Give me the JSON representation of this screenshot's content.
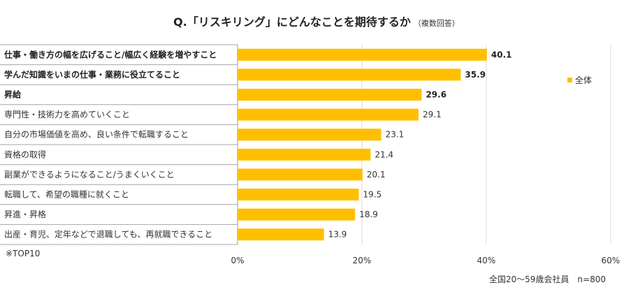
{
  "header": {
    "title": "Q.「リスキリング」にどんなことを期待するか",
    "subtitle": "（複数回答）"
  },
  "legend": {
    "label": "全体"
  },
  "note": "※TOP10",
  "footer": "全国20～59歳会社員　n=800",
  "colors": {
    "bar": "#FFBF00",
    "grid": "#d9d9d9",
    "row_line": "#a6a6a6"
  },
  "chart_data": {
    "type": "bar",
    "orientation": "horizontal",
    "title": "Q.「リスキリング」にどんなことを期待するか",
    "subtitle": "（複数回答）",
    "categories": [
      "仕事・働き方の幅を広げること/幅広く経験を増やすこと",
      "学んだ知識をいまの仕事・業務に役立てること",
      "昇給",
      "専門性・技術力を高めていくこと",
      "自分の市場価値を高め、良い条件で転職すること",
      "資格の取得",
      "副業ができるようになること/うまくいくこと",
      "転職して、希望の職種に就くこと",
      "昇進・昇格",
      "出産・育児、定年などで退職しても、再就職できること"
    ],
    "bold_top": 3,
    "series": [
      {
        "name": "全体",
        "values": [
          40.1,
          35.9,
          29.6,
          29.1,
          23.1,
          21.4,
          20.1,
          19.5,
          18.9,
          13.9
        ]
      }
    ],
    "value_labels": [
      "40.1",
      "35.9",
      "29.6",
      "29.1",
      "23.1",
      "21.4",
      "20.1",
      "19.5",
      "18.9",
      "13.9"
    ],
    "xlim": [
      0,
      60
    ],
    "xticks": [
      0,
      20,
      40,
      60
    ],
    "xtick_labels": [
      "0%",
      "20%",
      "40%",
      "60%"
    ],
    "grid": true,
    "legend_position": "right"
  }
}
